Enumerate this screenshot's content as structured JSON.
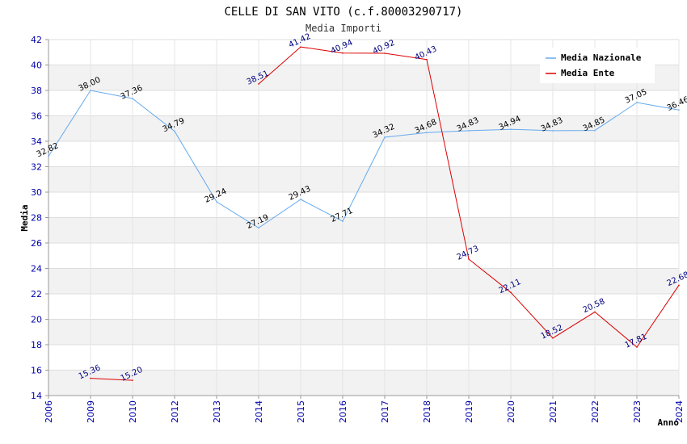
{
  "chart_data": {
    "type": "line",
    "title": "CELLE DI SAN VITO (c.f.80003290717)",
    "subtitle": "Media Importi",
    "xlabel": "Anno",
    "ylabel": "Media",
    "ylim": [
      14,
      42
    ],
    "yticks": [
      14,
      16,
      18,
      20,
      22,
      24,
      26,
      28,
      30,
      32,
      34,
      36,
      38,
      40,
      42
    ],
    "categories": [
      "2006",
      "2009",
      "2010",
      "2012",
      "2013",
      "2014",
      "2015",
      "2016",
      "2017",
      "2018",
      "2019",
      "2020",
      "2021",
      "2022",
      "2023",
      "2024"
    ],
    "legend_position": "top-right",
    "series": [
      {
        "name": "Media Nazionale",
        "color": "#66aaee",
        "values": [
          32.82,
          38.0,
          37.36,
          34.79,
          29.24,
          27.19,
          29.43,
          27.71,
          34.32,
          34.68,
          34.83,
          34.94,
          34.83,
          34.85,
          37.05,
          36.46
        ],
        "labels": [
          "32.82",
          "38.00",
          "37.36",
          "34.79",
          "29.24",
          "27.19",
          "29.43",
          "27.71",
          "34.32",
          "34.68",
          "34.83",
          "34.94",
          "34.83",
          "34.85",
          "37.05",
          "36.46"
        ]
      },
      {
        "name": "Media Ente",
        "color": "#dd0000",
        "values": [
          null,
          15.36,
          15.2,
          null,
          null,
          38.51,
          41.42,
          40.94,
          40.92,
          40.43,
          24.73,
          22.11,
          18.52,
          20.58,
          17.81,
          22.68
        ],
        "labels": [
          null,
          "15.36",
          "15.20",
          null,
          null,
          "38.51",
          "41.42",
          "40.94",
          "40.92",
          "40.43",
          "24.73",
          "22.11",
          "18.52",
          "20.58",
          "17.81",
          "22.68"
        ]
      }
    ]
  }
}
